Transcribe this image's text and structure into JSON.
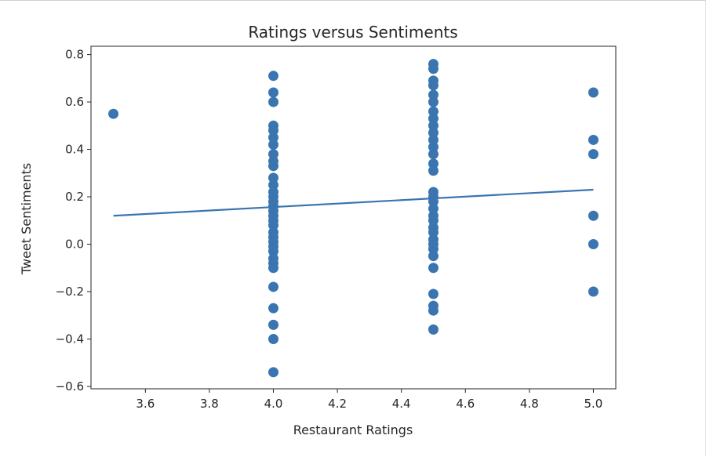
{
  "chart_data": {
    "type": "scatter",
    "title": "Ratings versus Sentiments",
    "xlabel": "Restaurant Ratings",
    "ylabel": "Tweet Sentiments",
    "xlim": [
      3.43,
      5.07
    ],
    "ylim": [
      -0.61,
      0.835
    ],
    "xticks": [
      3.6,
      3.8,
      4.0,
      4.2,
      4.4,
      4.6,
      4.8,
      5.0
    ],
    "yticks": [
      -0.6,
      -0.4,
      -0.2,
      0.0,
      0.2,
      0.4,
      0.6,
      0.8
    ],
    "xtick_labels": [
      "3.6",
      "3.8",
      "4.0",
      "4.2",
      "4.4",
      "4.6",
      "4.8",
      "5.0"
    ],
    "ytick_labels": [
      "−0.6",
      "−0.4",
      "−0.2",
      "0.0",
      "0.2",
      "0.4",
      "0.6",
      "0.8"
    ],
    "grid": false,
    "color": "#3a75b0",
    "series": [
      {
        "values": [
          {
            "x": 3.5,
            "y": 0.55
          },
          {
            "x": 4.0,
            "y": 0.71
          },
          {
            "x": 4.0,
            "y": 0.64
          },
          {
            "x": 4.0,
            "y": 0.6
          },
          {
            "x": 4.0,
            "y": 0.5
          },
          {
            "x": 4.0,
            "y": 0.48
          },
          {
            "x": 4.0,
            "y": 0.45
          },
          {
            "x": 4.0,
            "y": 0.42
          },
          {
            "x": 4.0,
            "y": 0.38
          },
          {
            "x": 4.0,
            "y": 0.35
          },
          {
            "x": 4.0,
            "y": 0.33
          },
          {
            "x": 4.0,
            "y": 0.28
          },
          {
            "x": 4.0,
            "y": 0.25
          },
          {
            "x": 4.0,
            "y": 0.22
          },
          {
            "x": 4.0,
            "y": 0.2
          },
          {
            "x": 4.0,
            "y": 0.18
          },
          {
            "x": 4.0,
            "y": 0.16
          },
          {
            "x": 4.0,
            "y": 0.14
          },
          {
            "x": 4.0,
            "y": 0.12
          },
          {
            "x": 4.0,
            "y": 0.1
          },
          {
            "x": 4.0,
            "y": 0.08
          },
          {
            "x": 4.0,
            "y": 0.05
          },
          {
            "x": 4.0,
            "y": 0.03
          },
          {
            "x": 4.0,
            "y": 0.01
          },
          {
            "x": 4.0,
            "y": -0.01
          },
          {
            "x": 4.0,
            "y": -0.03
          },
          {
            "x": 4.0,
            "y": -0.06
          },
          {
            "x": 4.0,
            "y": -0.08
          },
          {
            "x": 4.0,
            "y": -0.1
          },
          {
            "x": 4.0,
            "y": -0.18
          },
          {
            "x": 4.0,
            "y": -0.27
          },
          {
            "x": 4.0,
            "y": -0.34
          },
          {
            "x": 4.0,
            "y": -0.4
          },
          {
            "x": 4.0,
            "y": -0.54
          },
          {
            "x": 4.5,
            "y": 0.76
          },
          {
            "x": 4.5,
            "y": 0.74
          },
          {
            "x": 4.5,
            "y": 0.69
          },
          {
            "x": 4.5,
            "y": 0.67
          },
          {
            "x": 4.5,
            "y": 0.63
          },
          {
            "x": 4.5,
            "y": 0.6
          },
          {
            "x": 4.5,
            "y": 0.56
          },
          {
            "x": 4.5,
            "y": 0.53
          },
          {
            "x": 4.5,
            "y": 0.5
          },
          {
            "x": 4.5,
            "y": 0.47
          },
          {
            "x": 4.5,
            "y": 0.44
          },
          {
            "x": 4.5,
            "y": 0.41
          },
          {
            "x": 4.5,
            "y": 0.38
          },
          {
            "x": 4.5,
            "y": 0.34
          },
          {
            "x": 4.5,
            "y": 0.31
          },
          {
            "x": 4.5,
            "y": 0.22
          },
          {
            "x": 4.5,
            "y": 0.2
          },
          {
            "x": 4.5,
            "y": 0.18
          },
          {
            "x": 4.5,
            "y": 0.15
          },
          {
            "x": 4.5,
            "y": 0.12
          },
          {
            "x": 4.5,
            "y": 0.1
          },
          {
            "x": 4.5,
            "y": 0.07
          },
          {
            "x": 4.5,
            "y": 0.05
          },
          {
            "x": 4.5,
            "y": 0.02
          },
          {
            "x": 4.5,
            "y": 0.0
          },
          {
            "x": 4.5,
            "y": -0.02
          },
          {
            "x": 4.5,
            "y": -0.05
          },
          {
            "x": 4.5,
            "y": -0.1
          },
          {
            "x": 4.5,
            "y": -0.21
          },
          {
            "x": 4.5,
            "y": -0.26
          },
          {
            "x": 4.5,
            "y": -0.28
          },
          {
            "x": 4.5,
            "y": -0.36
          },
          {
            "x": 5.0,
            "y": 0.64
          },
          {
            "x": 5.0,
            "y": 0.44
          },
          {
            "x": 5.0,
            "y": 0.38
          },
          {
            "x": 5.0,
            "y": 0.12
          },
          {
            "x": 5.0,
            "y": 0.0
          },
          {
            "x": 5.0,
            "y": -0.2
          }
        ]
      }
    ],
    "trend_line": {
      "x": [
        3.5,
        5.0
      ],
      "y": [
        0.12,
        0.23
      ]
    }
  }
}
